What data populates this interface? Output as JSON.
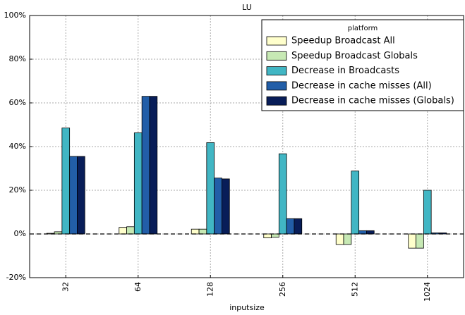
{
  "chart_data": {
    "type": "bar",
    "title": "LU",
    "x_label": "inputsize",
    "categories": [
      "32",
      "64",
      "128",
      "256",
      "512",
      "1024"
    ],
    "series": [
      {
        "name": "Speedup Broadcast All",
        "color": "#ffffcc",
        "values": [
          0.3,
          3,
          2.2,
          -1.8,
          -4.8,
          -6.5
        ]
      },
      {
        "name": "Speedup Broadcast Globals",
        "color": "#c7e9b4",
        "values": [
          1,
          3.3,
          2.2,
          -1.5,
          -4.8,
          -6.5
        ]
      },
      {
        "name": "Decrease in Broadcasts",
        "color": "#41b6c4",
        "values": [
          48.5,
          46.3,
          41.8,
          36.7,
          28.8,
          20
        ]
      },
      {
        "name": "Decrease in cache misses (All)",
        "color": "#225ea8",
        "values": [
          35.5,
          63,
          25.6,
          7,
          1.5,
          0.5
        ]
      },
      {
        "name": "Decrease in cache misses (Globals)",
        "color": "#081d58",
        "values": [
          35.5,
          63,
          25.2,
          7,
          1.5,
          0.5
        ]
      }
    ],
    "legend_title": "platform",
    "legend_position": "upper right",
    "ylim": [
      -20,
      100
    ],
    "yticks": [
      {
        "value": -20,
        "label": "-20%"
      },
      {
        "value": 0,
        "label": "0%"
      },
      {
        "value": 20,
        "label": "20%"
      },
      {
        "value": 40,
        "label": "40%"
      },
      {
        "value": 60,
        "label": "60%"
      },
      {
        "value": 80,
        "label": "80%"
      },
      {
        "value": 100,
        "label": "100%"
      }
    ],
    "grid": true
  }
}
